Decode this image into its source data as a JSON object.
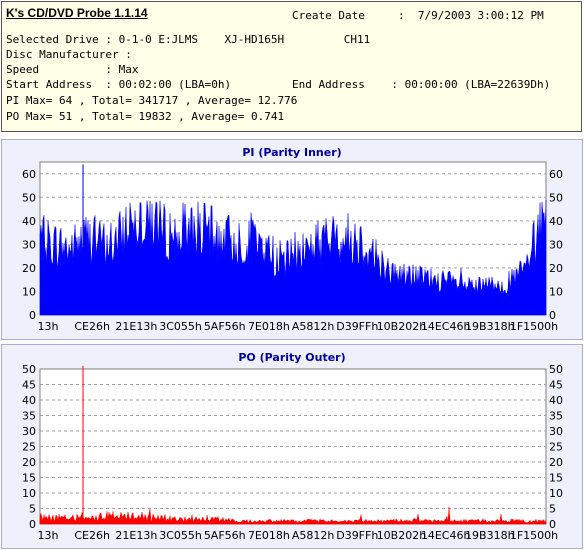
{
  "info": {
    "app_title": "K's CD/DVD Probe 1.1.14",
    "create_date_label": "Create Date",
    "create_date_value": ":  7/9/2003 3:00:12 PM",
    "selected_drive": "Selected Drive : 0-1-0 E:JLMS    XJ-HD165H         CH11",
    "disc_manufacturer": "Disc Manufacturer :",
    "speed": "Speed          : Max",
    "start_address": "Start Address  : 00:02:00 (LBA=0h)",
    "end_address": "End Address    : 00:00:00 (LBA=22639Dh)",
    "pi_summary": "PI Max= 64 , Total= 341717 , Average= 12.776",
    "po_summary": "PO Max= 51 , Total= 19832 , Average= 0.741"
  },
  "colors": {
    "pi_fill": "#0000ff",
    "po_fill": "#ff0000",
    "title": "#0000a0",
    "panel": "#eef0fb"
  },
  "chart_data": [
    {
      "type": "area",
      "title": "PI (Parity Inner)",
      "xlabel": "",
      "ylabel": "",
      "ylim": [
        0,
        65
      ],
      "y_ticks": [
        0,
        10,
        20,
        30,
        40,
        50,
        60
      ],
      "x_tick_labels": [
        "13h",
        "CE26h",
        "21E13h",
        "3C055h",
        "5AF56h",
        "7E018h",
        "A5812h",
        "D39FFh",
        "10B202h",
        "14EC46h",
        "19B318h",
        "1F1500h"
      ],
      "grid": true,
      "series": [
        {
          "x_frac": [
            0.0,
            0.03,
            0.06,
            0.09,
            0.12,
            0.15,
            0.18,
            0.21,
            0.24,
            0.27,
            0.3,
            0.33,
            0.36,
            0.39,
            0.42,
            0.45,
            0.48,
            0.51,
            0.54,
            0.57,
            0.6,
            0.63,
            0.66,
            0.69,
            0.72,
            0.75,
            0.78,
            0.81,
            0.84,
            0.87,
            0.9,
            0.93,
            0.96,
            0.98,
            1.0
          ],
          "values": [
            32,
            30,
            28,
            33,
            31,
            30,
            41,
            43,
            36,
            34,
            38,
            35,
            33,
            31,
            33,
            27,
            23,
            27,
            30,
            32,
            33,
            32,
            26,
            18,
            17,
            16,
            15,
            14,
            12,
            12,
            13,
            14,
            20,
            32,
            47
          ],
          "max_spike_x_frac": 0.085,
          "max_spike_value": 64
        }
      ]
    },
    {
      "type": "area",
      "title": "PO (Parity Outer)",
      "xlabel": "",
      "ylabel": "",
      "ylim": [
        0,
        50
      ],
      "y_ticks": [
        0,
        5,
        10,
        15,
        20,
        25,
        30,
        35,
        40,
        45,
        50
      ],
      "x_tick_labels": [
        "13h",
        "CE26h",
        "21E13h",
        "3C055h",
        "5AF56h",
        "7E018h",
        "A5812h",
        "D39FFh",
        "10B202h",
        "14EC46h",
        "19B318h",
        "1F1500h"
      ],
      "grid": true,
      "series": [
        {
          "x_frac": [
            0.0,
            0.05,
            0.1,
            0.15,
            0.2,
            0.3,
            0.4,
            0.5,
            0.6,
            0.7,
            0.8,
            0.9,
            1.0
          ],
          "values": [
            2,
            2,
            2,
            3,
            2,
            2,
            1,
            1,
            1,
            1,
            1,
            1,
            1
          ],
          "max_spike_x_frac": 0.085,
          "max_spike_value": 51
        }
      ]
    }
  ]
}
